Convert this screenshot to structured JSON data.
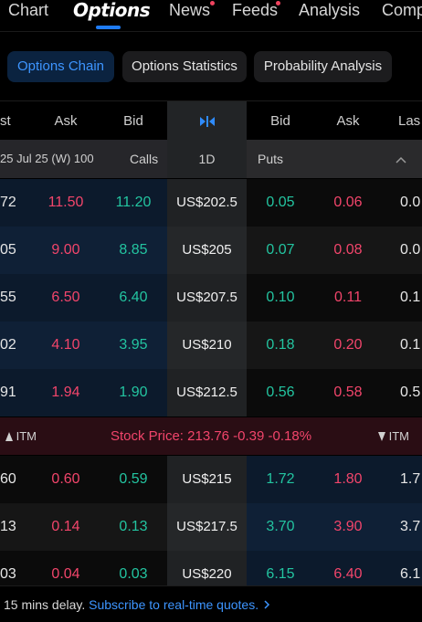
{
  "nav": {
    "tabs": [
      {
        "label": "Chart",
        "dot": false
      },
      {
        "label": "Options",
        "dot": false,
        "active": true
      },
      {
        "label": "News",
        "dot": true
      },
      {
        "label": "Feeds",
        "dot": true
      },
      {
        "label": "Analysis",
        "dot": false
      },
      {
        "label": "Comp",
        "dot": false
      }
    ]
  },
  "subtabs": [
    "Options Chain",
    "Options Statistics",
    "Probability Analysis"
  ],
  "header": {
    "calls_last": "st",
    "calls_ask": "Ask",
    "calls_bid": "Bid",
    "center_icon": "collapse-arrows-icon",
    "puts_bid": "Bid",
    "puts_ask": "Ask",
    "puts_last": "Las"
  },
  "expiry": {
    "date_label": "25 Jul 25 (W) 100",
    "calls_label": "Calls",
    "period": "1D",
    "puts_label": "Puts",
    "chevron_icon": "chevron-up-icon"
  },
  "rows_above": [
    {
      "c_last": "72",
      "c_ask": "11.50",
      "c_bid": "11.20",
      "strike": "US$202.5",
      "p_bid": "0.05",
      "p_ask": "0.06",
      "p_last": "0.0"
    },
    {
      "c_last": "05",
      "c_ask": "9.00",
      "c_bid": "8.85",
      "strike": "US$205",
      "p_bid": "0.07",
      "p_ask": "0.08",
      "p_last": "0.0"
    },
    {
      "c_last": "55",
      "c_ask": "6.50",
      "c_bid": "6.40",
      "strike": "US$207.5",
      "p_bid": "0.10",
      "p_ask": "0.11",
      "p_last": "0.1"
    },
    {
      "c_last": "02",
      "c_ask": "4.10",
      "c_bid": "3.95",
      "strike": "US$210",
      "p_bid": "0.18",
      "p_ask": "0.20",
      "p_last": "0.1"
    },
    {
      "c_last": "91",
      "c_ask": "1.94",
      "c_bid": "1.90",
      "strike": "US$212.5",
      "p_bid": "0.56",
      "p_ask": "0.58",
      "p_last": "0.5"
    }
  ],
  "price_bar": {
    "left_itm": "ITM",
    "text": "Stock Price: 213.76 -0.39 -0.18%",
    "right_itm": "ITM"
  },
  "rows_below": [
    {
      "c_last": "60",
      "c_ask": "0.60",
      "c_bid": "0.59",
      "strike": "US$215",
      "p_bid": "1.72",
      "p_ask": "1.80",
      "p_last": "1.7"
    },
    {
      "c_last": "13",
      "c_ask": "0.14",
      "c_bid": "0.13",
      "strike": "US$217.5",
      "p_bid": "3.70",
      "p_ask": "3.90",
      "p_last": "3.7"
    },
    {
      "c_last": "03",
      "c_ask": "0.04",
      "c_bid": "0.03",
      "strike": "US$220",
      "p_bid": "6.15",
      "p_ask": "6.40",
      "p_last": "6.1"
    }
  ],
  "footer": {
    "delay_text": "15 mins delay.",
    "link_text": "Subscribe to real-time quotes.",
    "link_icon": "chevron-right-icon"
  },
  "colors": {
    "accent": "#1f7cf5",
    "ask": "#f2456b",
    "bid": "#23c4a0",
    "itm_bg": "#0c1a2c",
    "otm_bg": "#0b0b0b",
    "price_bar_bg": "#2a0d14"
  }
}
